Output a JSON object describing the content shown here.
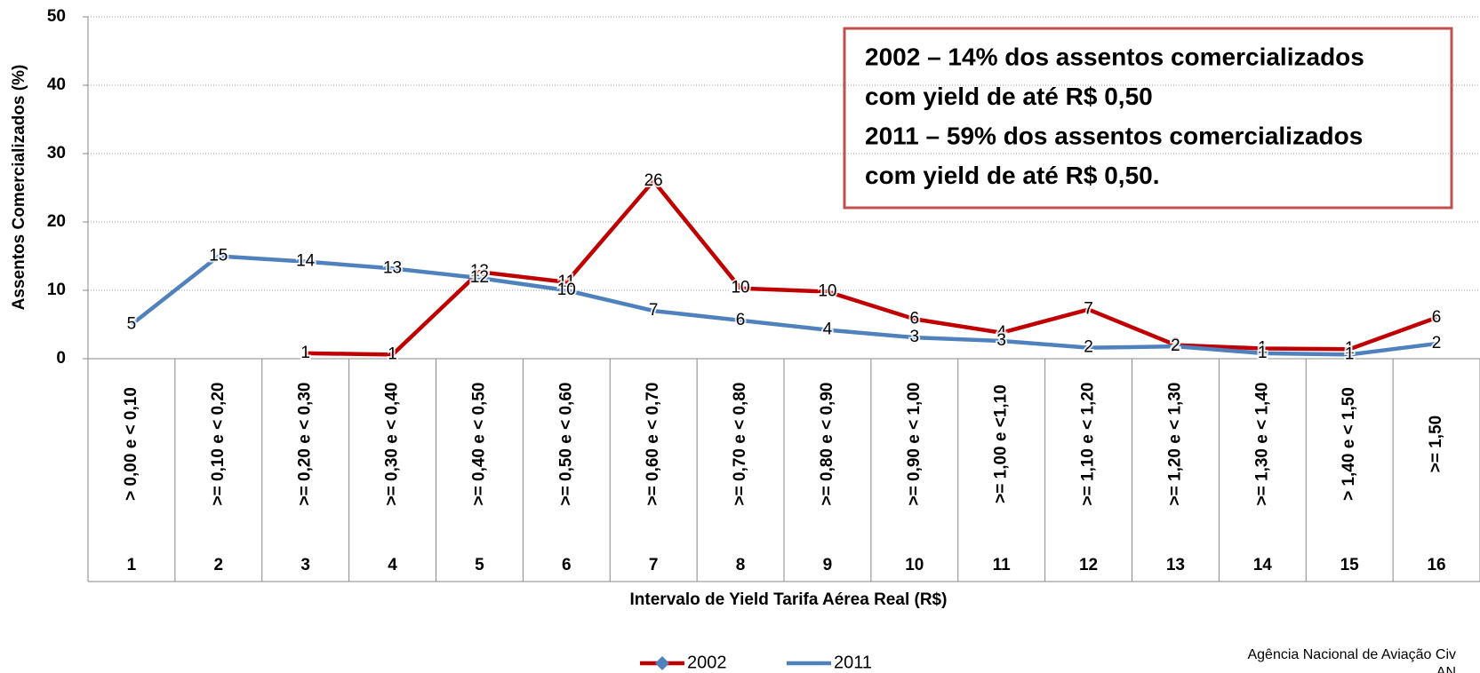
{
  "chart_data": {
    "type": "line",
    "y_axis_label": "Assentos Comercializados (%)",
    "x_axis_label": "Intervalo de Yield Tarifa Aérea Real (R$)",
    "categories": [
      1,
      2,
      3,
      4,
      5,
      6,
      7,
      8,
      9,
      10,
      11,
      12,
      13,
      14,
      15,
      16
    ],
    "ranges": [
      "> 0,00 e < 0,10",
      ">= 0,10 e < 0,20",
      ">= 0,20 e < 0,30",
      ">= 0,30 e < 0,40",
      ">= 0,40 e < 0,50",
      ">= 0,50 e < 0,60",
      ">= 0,60 e < 0,70",
      ">= 0,70 e < 0,80",
      ">= 0,80 e < 0,90",
      ">= 0,90 e < 1,00",
      ">= 1,00 e <1,10",
      ">= 1,10 e < 1,20",
      ">= 1,20 e < 1,30",
      ">= 1,30 e < 1,40",
      "> 1,40 e < 1,50",
      ">= 1,50"
    ],
    "series": [
      {
        "name": "2002",
        "color": "#c00000",
        "marker_color": "#4f81bd",
        "values": [
          null,
          null,
          0.8,
          0.6,
          12.7,
          11.2,
          26,
          10.3,
          9.8,
          5.8,
          3.8,
          7.2,
          2.0,
          1.5,
          1.4,
          6
        ],
        "value_labels": [
          null,
          null,
          "1",
          "1",
          "13",
          "11",
          "26",
          "10",
          "10",
          "6",
          "4",
          "7",
          "2",
          "1",
          "1",
          "6"
        ]
      },
      {
        "name": "2011",
        "color": "#4f81bd",
        "values": [
          5,
          15,
          14.2,
          13.2,
          11.8,
          10,
          7,
          5.6,
          4.2,
          3.1,
          2.6,
          1.6,
          1.8,
          0.8,
          0.6,
          2.2
        ],
        "value_labels": [
          "5",
          "15",
          "14",
          "13",
          "12",
          "10",
          "7",
          "6",
          "4",
          "3",
          "3",
          "2",
          "2",
          "1",
          "1",
          "2"
        ]
      }
    ],
    "ylim": [
      0,
      50
    ],
    "yticks": [
      0,
      10,
      20,
      30,
      40,
      50
    ],
    "grid": true,
    "annotation": [
      "2002 – 14% dos assentos comercializados",
      "com yield de até  R$ 0,50",
      "2011 – 59% dos assentos comercializados",
      "com yield de até  R$ 0,50."
    ],
    "source": [
      "Agência Nacional de Aviação Civ",
      "AN"
    ]
  }
}
